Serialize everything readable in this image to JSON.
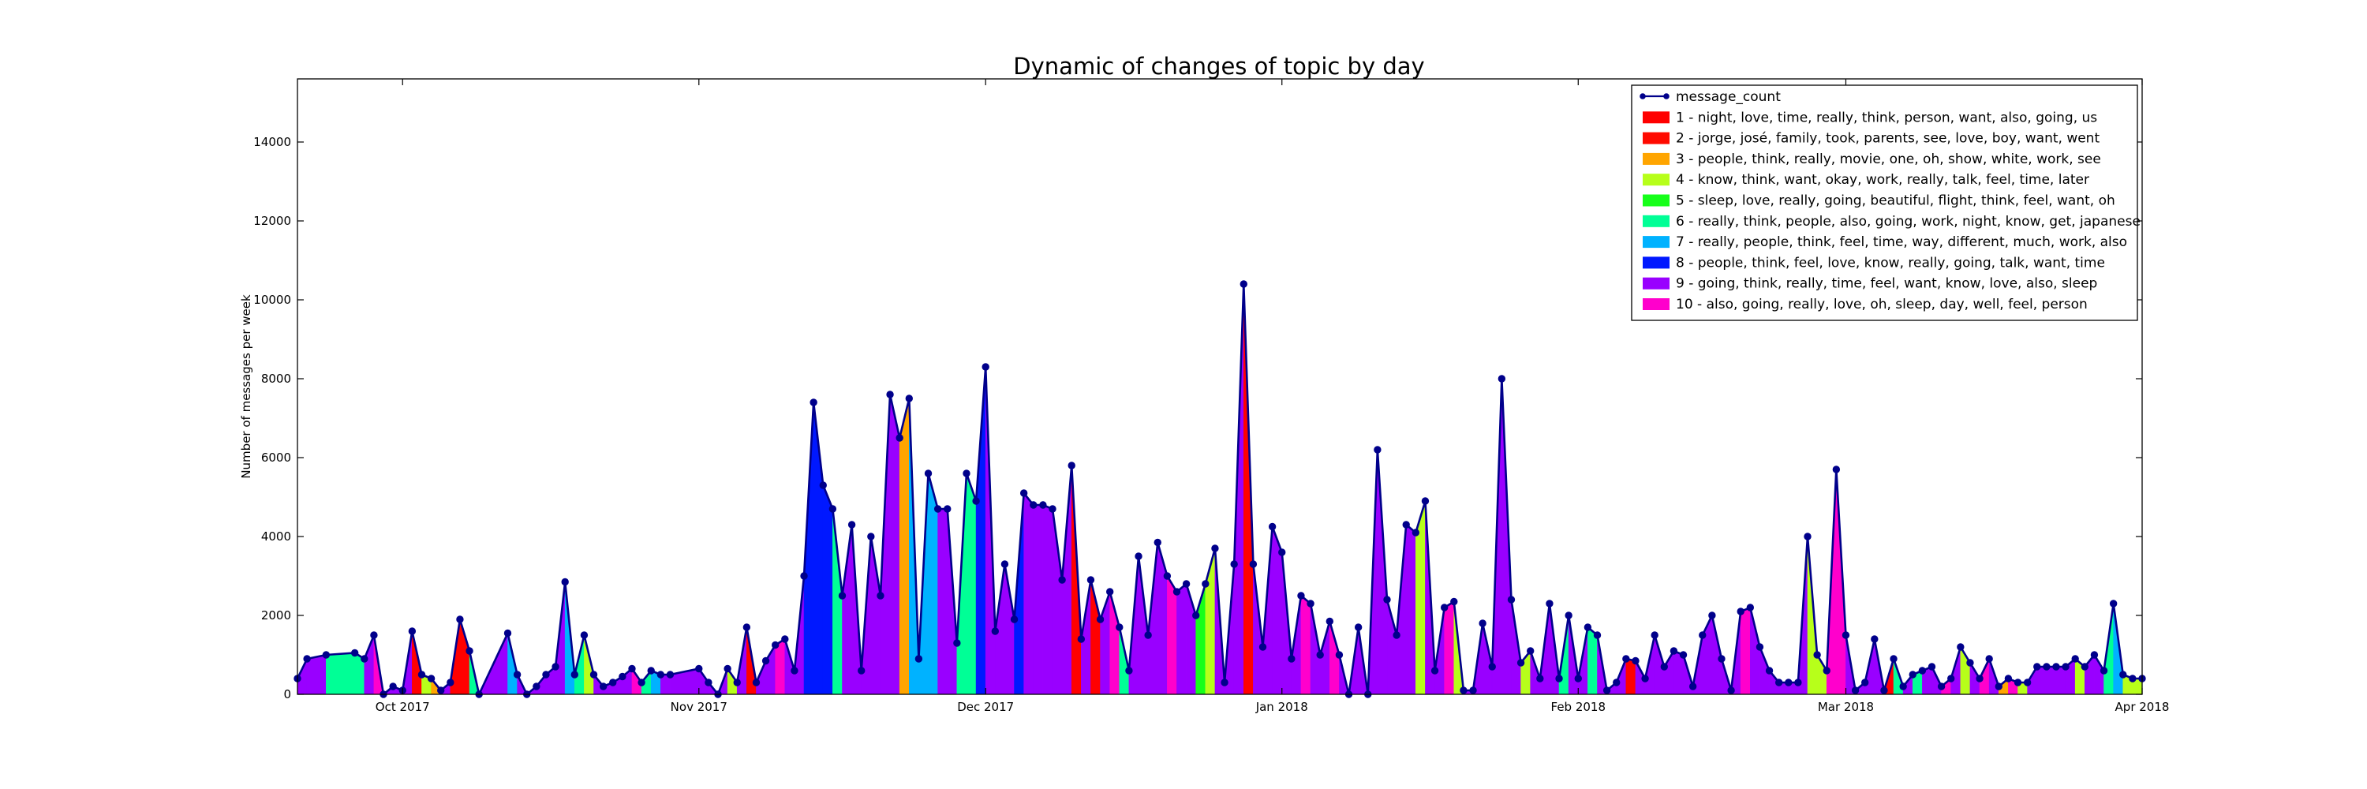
{
  "chart_data": {
    "type": "area",
    "title": "Dynamic of changes of topic by day",
    "xlabel": "",
    "ylabel": "Number of messages per week",
    "x_range": [
      "2017-09-20",
      "2018-04-01"
    ],
    "ylim": [
      0,
      15600
    ],
    "grid": false,
    "legend_position": "top-right",
    "x_ticks": [
      {
        "date": "2017-10-01",
        "label": "Oct 2017"
      },
      {
        "date": "2017-11-01",
        "label": "Nov 2017"
      },
      {
        "date": "2017-12-01",
        "label": "Dec 2017"
      },
      {
        "date": "2018-01-01",
        "label": "Jan 2018"
      },
      {
        "date": "2018-02-01",
        "label": "Feb 2018"
      },
      {
        "date": "2018-03-01",
        "label": "Mar 2018"
      },
      {
        "date": "2018-04-01",
        "label": "Apr 2018"
      }
    ],
    "y_ticks": [
      {
        "value": 0,
        "label": "0"
      },
      {
        "value": 2000,
        "label": "2000"
      },
      {
        "value": 4000,
        "label": "4000"
      },
      {
        "value": 6000,
        "label": "6000"
      },
      {
        "value": 8000,
        "label": "8000"
      },
      {
        "value": 10000,
        "label": "10000"
      },
      {
        "value": 12000,
        "label": "12000"
      },
      {
        "value": 14000,
        "label": "14000"
      }
    ],
    "line_series": {
      "name": "message_count",
      "color": "#00008b"
    },
    "topics": [
      {
        "id": 1,
        "label": "1 - night, love, time, really, think, person, want, also, going, us",
        "color": "#ff0000"
      },
      {
        "id": 2,
        "label": "2 - jorge, josé, family, took, parents, see, love, boy, want, went",
        "color": "#ff0a00"
      },
      {
        "id": 3,
        "label": "3 - people, think, really, movie, one, oh, show, white, work, see",
        "color": "#ffa500"
      },
      {
        "id": 4,
        "label": "4 - know, think, want, okay, work, really, talk, feel, time, later",
        "color": "#b7ff1a"
      },
      {
        "id": 5,
        "label": "5 - sleep, love, really, going, beautiful, flight, think, feel, want, oh",
        "color": "#16ff1a"
      },
      {
        "id": 6,
        "label": "6 - really, think, people, also, going, work, night, know, get, japanese",
        "color": "#00ff96"
      },
      {
        "id": 7,
        "label": "7 - really, people, think, feel, time, way, different, much, work, also",
        "color": "#00b2ff"
      },
      {
        "id": 8,
        "label": "8 - people, think, feel, love, know, really, going, talk, want, time",
        "color": "#0018ff"
      },
      {
        "id": 9,
        "label": "9 - going, think, really, time, feel, want, know, love, also, sleep",
        "color": "#9900ff"
      },
      {
        "id": 10,
        "label": "10 - also, going, really, love, oh, sleep, day, well, feel, person",
        "color": "#ff00cc"
      }
    ],
    "points": [
      [
        "2017-09-20",
        400,
        9
      ],
      [
        "2017-09-21",
        900,
        9
      ],
      [
        "2017-09-23",
        1000,
        6
      ],
      [
        "2017-09-26",
        1050,
        6
      ],
      [
        "2017-09-27",
        900,
        9
      ],
      [
        "2017-09-28",
        1500,
        10
      ],
      [
        "2017-09-29",
        0,
        9
      ],
      [
        "2017-09-30",
        200,
        9
      ],
      [
        "2017-10-01",
        100,
        9
      ],
      [
        "2017-10-02",
        1600,
        1
      ],
      [
        "2017-10-03",
        500,
        4
      ],
      [
        "2017-10-04",
        400,
        3
      ],
      [
        "2017-10-05",
        100,
        9
      ],
      [
        "2017-10-06",
        300,
        1
      ],
      [
        "2017-10-07",
        1900,
        1
      ],
      [
        "2017-10-08",
        1100,
        6
      ],
      [
        "2017-10-09",
        0,
        9
      ],
      [
        "2017-10-12",
        1550,
        7
      ],
      [
        "2017-10-13",
        500,
        9
      ],
      [
        "2017-10-14",
        0,
        9
      ],
      [
        "2017-10-15",
        200,
        9
      ],
      [
        "2017-10-16",
        500,
        9
      ],
      [
        "2017-10-17",
        700,
        9
      ],
      [
        "2017-10-18",
        2850,
        7
      ],
      [
        "2017-10-19",
        500,
        6
      ],
      [
        "2017-10-20",
        1500,
        4
      ],
      [
        "2017-10-21",
        500,
        9
      ],
      [
        "2017-10-22",
        200,
        9
      ],
      [
        "2017-10-23",
        300,
        9
      ],
      [
        "2017-10-24",
        450,
        9
      ],
      [
        "2017-10-25",
        650,
        10
      ],
      [
        "2017-10-26",
        300,
        6
      ],
      [
        "2017-10-27",
        600,
        7
      ],
      [
        "2017-10-28",
        500,
        9
      ],
      [
        "2017-10-29",
        500,
        9
      ],
      [
        "2017-11-01",
        650,
        9
      ],
      [
        "2017-11-02",
        300,
        9
      ],
      [
        "2017-11-03",
        0,
        9
      ],
      [
        "2017-11-04",
        650,
        4
      ],
      [
        "2017-11-05",
        300,
        9
      ],
      [
        "2017-11-06",
        1700,
        1
      ],
      [
        "2017-11-07",
        300,
        9
      ],
      [
        "2017-11-08",
        850,
        9
      ],
      [
        "2017-11-09",
        1250,
        10
      ],
      [
        "2017-11-10",
        1400,
        9
      ],
      [
        "2017-11-11",
        600,
        9
      ],
      [
        "2017-11-12",
        3000,
        8
      ],
      [
        "2017-11-13",
        7400,
        8
      ],
      [
        "2017-11-14",
        5300,
        8
      ],
      [
        "2017-11-15",
        4700,
        6
      ],
      [
        "2017-11-16",
        2500,
        9
      ],
      [
        "2017-11-17",
        4300,
        9
      ],
      [
        "2017-11-18",
        600,
        9
      ],
      [
        "2017-11-19",
        4000,
        9
      ],
      [
        "2017-11-20",
        2500,
        9
      ],
      [
        "2017-11-21",
        7600,
        9
      ],
      [
        "2017-11-22",
        6500,
        3
      ],
      [
        "2017-11-23",
        7500,
        7
      ],
      [
        "2017-11-24",
        900,
        7
      ],
      [
        "2017-11-25",
        5600,
        7
      ],
      [
        "2017-11-26",
        4700,
        9
      ],
      [
        "2017-11-27",
        4700,
        9
      ],
      [
        "2017-11-28",
        1300,
        6
      ],
      [
        "2017-11-29",
        5600,
        6
      ],
      [
        "2017-11-30",
        4900,
        8
      ],
      [
        "2017-12-01",
        8300,
        9
      ],
      [
        "2017-12-02",
        1600,
        9
      ],
      [
        "2017-12-03",
        3300,
        9
      ],
      [
        "2017-12-04",
        1900,
        8
      ],
      [
        "2017-12-05",
        5100,
        9
      ],
      [
        "2017-12-06",
        4800,
        9
      ],
      [
        "2017-12-07",
        4800,
        9
      ],
      [
        "2017-12-08",
        4700,
        9
      ],
      [
        "2017-12-09",
        2900,
        9
      ],
      [
        "2017-12-10",
        5800,
        1
      ],
      [
        "2017-12-11",
        1400,
        9
      ],
      [
        "2017-12-12",
        2900,
        1
      ],
      [
        "2017-12-13",
        1900,
        9
      ],
      [
        "2017-12-14",
        2600,
        10
      ],
      [
        "2017-12-15",
        1700,
        6
      ],
      [
        "2017-12-16",
        600,
        9
      ],
      [
        "2017-12-17",
        3500,
        9
      ],
      [
        "2017-12-18",
        1500,
        9
      ],
      [
        "2017-12-19",
        3850,
        9
      ],
      [
        "2017-12-20",
        3000,
        10
      ],
      [
        "2017-12-21",
        2600,
        9
      ],
      [
        "2017-12-22",
        2800,
        9
      ],
      [
        "2017-12-23",
        2000,
        5
      ],
      [
        "2017-12-24",
        2800,
        4
      ],
      [
        "2017-12-25",
        3700,
        9
      ],
      [
        "2017-12-26",
        300,
        9
      ],
      [
        "2017-12-27",
        3300,
        9
      ],
      [
        "2017-12-28",
        10400,
        1
      ],
      [
        "2017-12-29",
        3300,
        9
      ],
      [
        "2017-12-30",
        1200,
        9
      ],
      [
        "2017-12-31",
        4250,
        9
      ],
      [
        "2018-01-01",
        3600,
        9
      ],
      [
        "2018-01-02",
        900,
        9
      ],
      [
        "2018-01-03",
        2500,
        10
      ],
      [
        "2018-01-04",
        2300,
        9
      ],
      [
        "2018-01-05",
        1000,
        9
      ],
      [
        "2018-01-06",
        1850,
        10
      ],
      [
        "2018-01-07",
        1000,
        9
      ],
      [
        "2018-01-08",
        0,
        9
      ],
      [
        "2018-01-09",
        1700,
        9
      ],
      [
        "2018-01-10",
        0,
        9
      ],
      [
        "2018-01-11",
        6200,
        9
      ],
      [
        "2018-01-12",
        2400,
        9
      ],
      [
        "2018-01-13",
        1500,
        9
      ],
      [
        "2018-01-14",
        4300,
        9
      ],
      [
        "2018-01-15",
        4100,
        4
      ],
      [
        "2018-01-16",
        4900,
        9
      ],
      [
        "2018-01-17",
        600,
        9
      ],
      [
        "2018-01-18",
        2200,
        10
      ],
      [
        "2018-01-19",
        2350,
        4
      ],
      [
        "2018-01-20",
        100,
        9
      ],
      [
        "2018-01-21",
        100,
        9
      ],
      [
        "2018-01-22",
        1800,
        9
      ],
      [
        "2018-01-23",
        700,
        9
      ],
      [
        "2018-01-24",
        8000,
        9
      ],
      [
        "2018-01-25",
        2400,
        9
      ],
      [
        "2018-01-26",
        800,
        4
      ],
      [
        "2018-01-27",
        1100,
        9
      ],
      [
        "2018-01-28",
        400,
        9
      ],
      [
        "2018-01-29",
        2300,
        9
      ],
      [
        "2018-01-30",
        400,
        6
      ],
      [
        "2018-01-31",
        2000,
        9
      ],
      [
        "2018-02-01",
        400,
        9
      ],
      [
        "2018-02-02",
        1700,
        6
      ],
      [
        "2018-02-03",
        1500,
        9
      ],
      [
        "2018-02-04",
        100,
        9
      ],
      [
        "2018-02-05",
        300,
        9
      ],
      [
        "2018-02-06",
        900,
        1
      ],
      [
        "2018-02-07",
        850,
        9
      ],
      [
        "2018-02-08",
        400,
        9
      ],
      [
        "2018-02-09",
        1500,
        9
      ],
      [
        "2018-02-10",
        700,
        9
      ],
      [
        "2018-02-11",
        1100,
        9
      ],
      [
        "2018-02-12",
        1000,
        9
      ],
      [
        "2018-02-13",
        200,
        9
      ],
      [
        "2018-02-14",
        1500,
        9
      ],
      [
        "2018-02-15",
        2000,
        9
      ],
      [
        "2018-02-16",
        900,
        9
      ],
      [
        "2018-02-17",
        100,
        9
      ],
      [
        "2018-02-18",
        2100,
        10
      ],
      [
        "2018-02-19",
        2200,
        9
      ],
      [
        "2018-02-20",
        1200,
        9
      ],
      [
        "2018-02-21",
        600,
        9
      ],
      [
        "2018-02-22",
        300,
        9
      ],
      [
        "2018-02-23",
        300,
        9
      ],
      [
        "2018-02-24",
        300,
        9
      ],
      [
        "2018-02-25",
        4000,
        4
      ],
      [
        "2018-02-26",
        1000,
        4
      ],
      [
        "2018-02-27",
        600,
        10
      ],
      [
        "2018-02-28",
        5700,
        10
      ],
      [
        "2018-03-01",
        1500,
        9
      ],
      [
        "2018-03-02",
        100,
        9
      ],
      [
        "2018-03-03",
        300,
        9
      ],
      [
        "2018-03-04",
        1400,
        9
      ],
      [
        "2018-03-05",
        100,
        1
      ],
      [
        "2018-03-06",
        900,
        6
      ],
      [
        "2018-03-07",
        200,
        9
      ],
      [
        "2018-03-08",
        500,
        6
      ],
      [
        "2018-03-09",
        600,
        9
      ],
      [
        "2018-03-10",
        700,
        9
      ],
      [
        "2018-03-11",
        200,
        10
      ],
      [
        "2018-03-12",
        400,
        9
      ],
      [
        "2018-03-13",
        1200,
        4
      ],
      [
        "2018-03-14",
        800,
        9
      ],
      [
        "2018-03-15",
        400,
        10
      ],
      [
        "2018-03-16",
        900,
        9
      ],
      [
        "2018-03-17",
        200,
        3
      ],
      [
        "2018-03-18",
        400,
        10
      ],
      [
        "2018-03-19",
        300,
        4
      ],
      [
        "2018-03-20",
        300,
        9
      ],
      [
        "2018-03-21",
        700,
        9
      ],
      [
        "2018-03-22",
        700,
        9
      ],
      [
        "2018-03-23",
        700,
        9
      ],
      [
        "2018-03-24",
        700,
        9
      ],
      [
        "2018-03-25",
        900,
        4
      ],
      [
        "2018-03-26",
        700,
        9
      ],
      [
        "2018-03-27",
        1000,
        9
      ],
      [
        "2018-03-28",
        600,
        6
      ],
      [
        "2018-03-29",
        2300,
        7
      ],
      [
        "2018-03-30",
        500,
        4
      ],
      [
        "2018-03-31",
        400,
        4
      ],
      [
        "2018-04-01",
        400,
        9
      ]
    ]
  }
}
